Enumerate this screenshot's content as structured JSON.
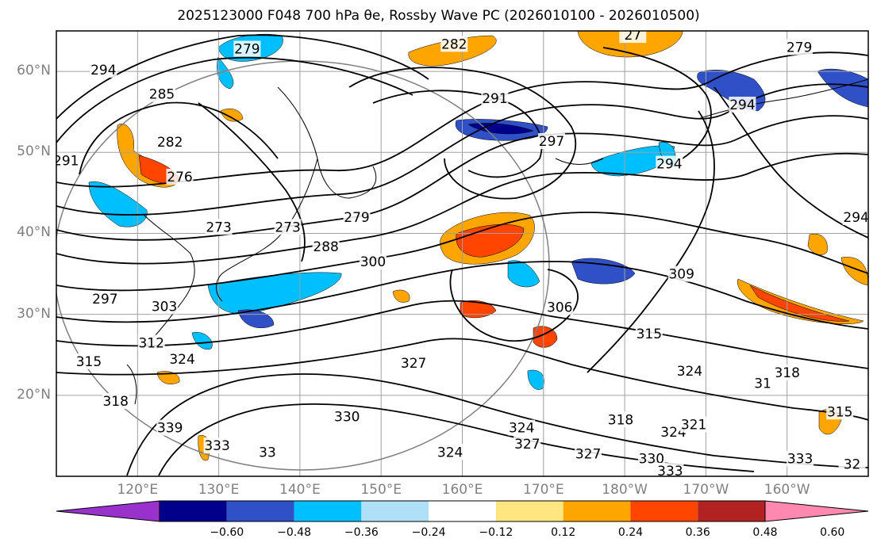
{
  "title": "2025123000 F048 700 hPa θe, Rossby Wave PC (2026010100 - 2026010500)",
  "map": {
    "lat_labels": [
      {
        "text": "60°N",
        "lat": 60
      },
      {
        "text": "50°N",
        "lat": 50
      },
      {
        "text": "40°N",
        "lat": 40
      },
      {
        "text": "30°N",
        "lat": 30
      },
      {
        "text": "20°N",
        "lat": 20
      }
    ],
    "lon_labels": [
      {
        "text": "120°E",
        "lon": 120
      },
      {
        "text": "130°E",
        "lon": 130
      },
      {
        "text": "140°E",
        "lon": 140
      },
      {
        "text": "150°E",
        "lon": 150
      },
      {
        "text": "160°E",
        "lon": 160
      },
      {
        "text": "170°E",
        "lon": 170
      },
      {
        "text": "180°W",
        "lon": 180
      },
      {
        "text": "170°W",
        "lon": 190
      },
      {
        "text": "160°W",
        "lon": 200
      }
    ],
    "extent": {
      "lon_min": 110,
      "lon_max": 210,
      "lat_min": 10,
      "lat_max": 65
    },
    "contour_labels": [
      {
        "text": "279",
        "lon": 133.5,
        "lat": 62.8
      },
      {
        "text": "294",
        "lon": 115.8,
        "lat": 60.2
      },
      {
        "text": "285",
        "lon": 123.0,
        "lat": 57.2
      },
      {
        "text": "282",
        "lon": 124.0,
        "lat": 51.3
      },
      {
        "text": "276",
        "lon": 125.2,
        "lat": 47.0
      },
      {
        "text": "291",
        "lon": 111.2,
        "lat": 49.0
      },
      {
        "text": "273",
        "lon": 130.0,
        "lat": 40.8
      },
      {
        "text": "273",
        "lon": 138.5,
        "lat": 40.8
      },
      {
        "text": "279",
        "lon": 147.0,
        "lat": 42.0
      },
      {
        "text": "288",
        "lon": 143.2,
        "lat": 38.4
      },
      {
        "text": "300",
        "lon": 149.0,
        "lat": 36.5
      },
      {
        "text": "297",
        "lon": 116.0,
        "lat": 31.9
      },
      {
        "text": "303",
        "lon": 123.3,
        "lat": 31.0
      },
      {
        "text": "312",
        "lon": 121.7,
        "lat": 26.5
      },
      {
        "text": "324",
        "lon": 125.5,
        "lat": 24.5
      },
      {
        "text": "315",
        "lon": 114.0,
        "lat": 24.2
      },
      {
        "text": "318",
        "lon": 117.3,
        "lat": 19.3
      },
      {
        "text": "339",
        "lon": 124.0,
        "lat": 16.0
      },
      {
        "text": "333",
        "lon": 129.8,
        "lat": 13.8
      },
      {
        "text": "33",
        "lon": 136.0,
        "lat": 13.0
      },
      {
        "text": "330",
        "lon": 145.8,
        "lat": 17.4
      },
      {
        "text": "327",
        "lon": 154.0,
        "lat": 24.0
      },
      {
        "text": "324",
        "lon": 158.5,
        "lat": 13.0
      },
      {
        "text": "324",
        "lon": 167.3,
        "lat": 16.0
      },
      {
        "text": "327",
        "lon": 168.0,
        "lat": 14.0
      },
      {
        "text": "327",
        "lon": 175.5,
        "lat": 12.8
      },
      {
        "text": "318",
        "lon": 179.5,
        "lat": 17.0
      },
      {
        "text": "324",
        "lon": 186.0,
        "lat": 15.5
      },
      {
        "text": "321",
        "lon": 188.5,
        "lat": 16.4
      },
      {
        "text": "330",
        "lon": 183.3,
        "lat": 12.2
      },
      {
        "text": "333",
        "lon": 185.6,
        "lat": 10.7
      },
      {
        "text": "333",
        "lon": 201.6,
        "lat": 12.2
      },
      {
        "text": "32",
        "lon": 208.0,
        "lat": 11.5
      },
      {
        "text": "306",
        "lon": 172.0,
        "lat": 30.9
      },
      {
        "text": "315",
        "lon": 183.0,
        "lat": 27.6
      },
      {
        "text": "324",
        "lon": 188.0,
        "lat": 23.0
      },
      {
        "text": "318",
        "lon": 200.0,
        "lat": 22.8
      },
      {
        "text": "31",
        "lon": 197.0,
        "lat": 21.5
      },
      {
        "text": "315",
        "lon": 206.5,
        "lat": 18.0
      },
      {
        "text": "309",
        "lon": 187.0,
        "lat": 35.0
      },
      {
        "text": "294",
        "lon": 185.5,
        "lat": 48.6
      },
      {
        "text": "297",
        "lon": 171.0,
        "lat": 51.4
      },
      {
        "text": "291",
        "lon": 164.0,
        "lat": 56.7
      },
      {
        "text": "282",
        "lon": 159.0,
        "lat": 63.4
      },
      {
        "text": "279",
        "lon": 201.5,
        "lat": 63.0
      },
      {
        "text": "294",
        "lon": 194.5,
        "lat": 55.9
      },
      {
        "text": "294",
        "lon": 208.5,
        "lat": 42.0
      },
      {
        "text": "27",
        "lon": 181.0,
        "lat": 64.5
      }
    ]
  },
  "colorbar": {
    "labels": [
      "−0.60",
      "−0.48",
      "−0.36",
      "−0.24",
      "−0.12",
      "0.12",
      "0.24",
      "0.36",
      "0.48",
      "0.60"
    ],
    "colors": [
      "#9932cc",
      "#00008b",
      "#3050c8",
      "#00bfff",
      "#b0e0f8",
      "#ffffff",
      "#ffe680",
      "#ffa500",
      "#ff4500",
      "#b22222",
      "#ff88b0"
    ]
  }
}
